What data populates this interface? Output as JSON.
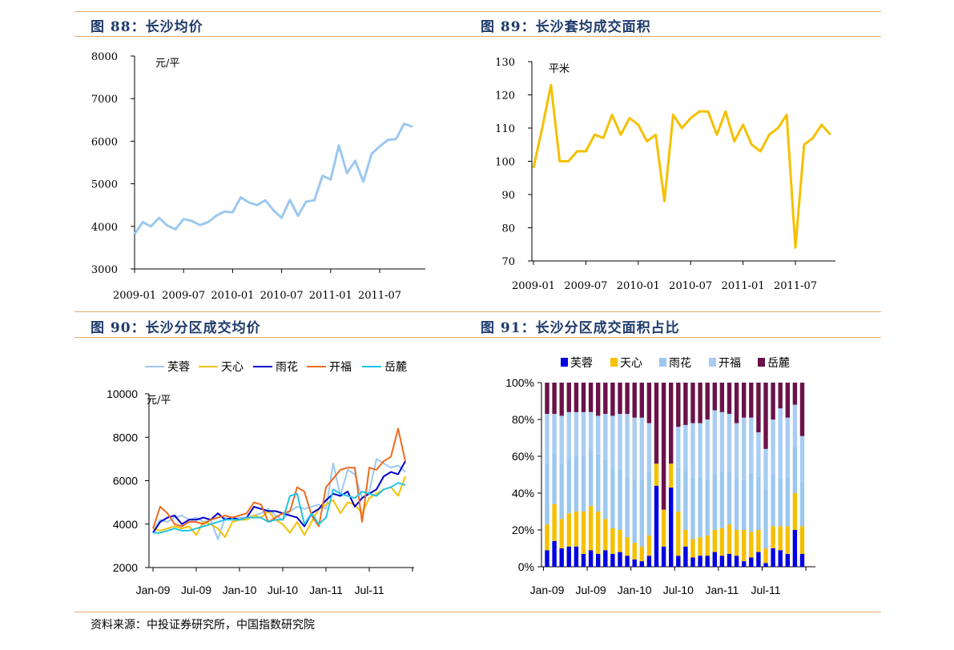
{
  "panels": {
    "p88": {
      "title": "图 88：长沙均价"
    },
    "p89": {
      "title": "图 89：长沙套均成交面积"
    },
    "p90": {
      "title": "图 90：长沙分区成交均价"
    },
    "p91": {
      "title": "图 91：长沙分区成交面积占比"
    }
  },
  "source": "资料来源：中投证券研究所，中国指数研究院",
  "chart_data": [
    {
      "id": "c88",
      "type": "line",
      "unit": "元/平",
      "ylim": [
        3000,
        8000
      ],
      "yticks": [
        3000,
        4000,
        5000,
        6000,
        7000,
        8000
      ],
      "xticks": [
        "2009-01",
        "2009-07",
        "2010-01",
        "2010-07",
        "2011-01",
        "2011-07"
      ],
      "tickEvery": 6,
      "color": "#9cc8ef",
      "series": [
        {
          "values": [
            3820,
            4100,
            4000,
            4200,
            4020,
            3930,
            4170,
            4130,
            4030,
            4100,
            4250,
            4350,
            4330,
            4680,
            4560,
            4500,
            4610,
            4380,
            4200,
            4620,
            4250,
            4580,
            4610,
            5190,
            5100,
            5900,
            5250,
            5540,
            5050,
            5700,
            5880,
            6030,
            6050,
            6410,
            6340
          ]
        }
      ]
    },
    {
      "id": "c89",
      "type": "line",
      "unit": "平米",
      "ylim": [
        70,
        130
      ],
      "yticks": [
        70,
        80,
        90,
        100,
        110,
        120,
        130
      ],
      "xticks": [
        "2009-01",
        "2009-07",
        "2010-01",
        "2010-07",
        "2011-01",
        "2011-07"
      ],
      "tickEvery": 6,
      "color": "#f5c000",
      "series": [
        {
          "values": [
            98,
            110,
            123,
            100,
            100,
            103,
            103,
            108,
            107,
            114,
            108,
            113,
            111,
            106,
            108,
            88,
            114,
            110,
            113,
            115,
            115,
            108,
            115,
            106,
            111,
            105,
            103,
            108,
            110,
            114,
            74,
            105,
            107,
            111,
            108
          ]
        }
      ]
    },
    {
      "id": "c90",
      "type": "line",
      "unit": "元/平",
      "ylim": [
        2000,
        10000
      ],
      "yticks": [
        2000,
        4000,
        6000,
        8000,
        10000
      ],
      "xticks": [
        "Jan-09",
        "Jul-09",
        "Jan-10",
        "Jul-10",
        "Jan-11",
        "Jul-11"
      ],
      "tickEvery": 6,
      "series": [
        {
          "name": "芙蓉",
          "color": "#9cc8ef",
          "values": [
            3700,
            4200,
            4100,
            4300,
            4400,
            4200,
            4300,
            4100,
            4200,
            3300,
            4300,
            4200,
            4300,
            4300,
            4400,
            4500,
            4700,
            4400,
            4200,
            4600,
            4800,
            4700,
            4800,
            4900,
            4700,
            6800,
            5300,
            6500,
            6300,
            5200,
            5500,
            7000,
            6800,
            6600,
            6700,
            6400
          ]
        },
        {
          "name": "天心",
          "color": "#f5c000",
          "values": [
            3800,
            3700,
            3800,
            3900,
            3800,
            3900,
            3500,
            4100,
            4000,
            3800,
            3400,
            4100,
            4200,
            4200,
            4400,
            4300,
            4600,
            4200,
            4000,
            3600,
            4100,
            3500,
            4100,
            4700,
            4900,
            5100,
            4500,
            5000,
            4900,
            4500,
            5200,
            5400,
            5600,
            5700,
            5300,
            6200
          ]
        },
        {
          "name": "雨花",
          "color": "#0000cc",
          "values": [
            3600,
            4100,
            4300,
            4400,
            4000,
            4200,
            4200,
            4300,
            4200,
            4500,
            4200,
            4300,
            4200,
            4300,
            4800,
            4700,
            4600,
            4600,
            4500,
            4400,
            4300,
            3900,
            4500,
            4700,
            5100,
            5400,
            5300,
            5500,
            4800,
            5200,
            5400,
            5600,
            6200,
            6400,
            6300,
            6900
          ]
        },
        {
          "name": "开福",
          "color": "#ec6b1f",
          "values": [
            3800,
            4800,
            4500,
            4000,
            3900,
            4100,
            4100,
            4000,
            4200,
            4300,
            4400,
            4300,
            4400,
            4500,
            5000,
            4900,
            4100,
            4300,
            4500,
            4600,
            5700,
            5500,
            4400,
            3900,
            5700,
            6100,
            6500,
            6600,
            6600,
            4100,
            6600,
            6500,
            6900,
            7100,
            8400,
            6900
          ]
        },
        {
          "name": "岳麓",
          "color": "#21c4e6",
          "values": [
            3600,
            3600,
            3700,
            3800,
            3700,
            3700,
            3800,
            3900,
            4000,
            4100,
            4200,
            4200,
            4200,
            4300,
            4300,
            4300,
            4100,
            4200,
            4200,
            5300,
            5400,
            4000,
            4500,
            4000,
            4300,
            5600,
            5400,
            5300,
            5200,
            5500,
            5400,
            5300,
            5600,
            5700,
            5900,
            5800
          ]
        }
      ]
    },
    {
      "id": "c91",
      "type": "stacked-bar",
      "ylim": [
        0,
        100
      ],
      "yticks": [
        "0%",
        "20%",
        "40%",
        "60%",
        "80%",
        "100%"
      ],
      "xticks": [
        "Jan-09",
        "Jul-09",
        "Jan-10",
        "Jul-10",
        "Jan-11",
        "Jul-11"
      ],
      "tickEvery": 6,
      "series": [
        {
          "name": "芙蓉",
          "color": "#0000e0",
          "values": [
            9,
            14,
            10,
            11,
            11,
            7,
            9,
            7,
            9,
            7,
            8,
            6,
            4,
            3,
            6,
            44,
            11,
            43,
            6,
            11,
            5,
            6,
            6,
            8,
            6,
            7,
            6,
            3,
            5,
            8,
            2,
            10,
            9,
            7,
            20,
            7
          ]
        },
        {
          "name": "天心",
          "color": "#f5c000",
          "values": [
            14,
            20,
            16,
            18,
            19,
            23,
            24,
            23,
            17,
            14,
            12,
            10,
            9,
            8,
            11,
            12,
            20,
            13,
            24,
            9,
            10,
            10,
            11,
            12,
            15,
            16,
            14,
            17,
            14,
            12,
            8,
            12,
            13,
            15,
            20,
            15
          ]
        },
        {
          "name": "雨花",
          "color": "#9cc8ef",
          "values": [
            33,
            28,
            30,
            30,
            30,
            30,
            30,
            31,
            32,
            33,
            33,
            33,
            34,
            36,
            35,
            0,
            0,
            0,
            24,
            32,
            33,
            33,
            30,
            30,
            31,
            29,
            28,
            27,
            32,
            29,
            32,
            28,
            26,
            27,
            25,
            24
          ]
        },
        {
          "name": "开福",
          "color": "#a9cdf2",
          "values": [
            27,
            21,
            26,
            25,
            24,
            24,
            21,
            21,
            25,
            28,
            30,
            34,
            34,
            34,
            26,
            0,
            0,
            0,
            22,
            25,
            30,
            29,
            33,
            35,
            32,
            31,
            30,
            34,
            30,
            24,
            22,
            30,
            38,
            32,
            23,
            25
          ]
        },
        {
          "name": "岳麓",
          "color": "#6b1248",
          "values": [
            17,
            17,
            18,
            16,
            16,
            16,
            16,
            18,
            17,
            18,
            17,
            17,
            19,
            19,
            22,
            44,
            69,
            44,
            24,
            23,
            22,
            22,
            20,
            15,
            16,
            17,
            22,
            19,
            19,
            27,
            36,
            20,
            14,
            19,
            12,
            29
          ]
        }
      ]
    }
  ]
}
